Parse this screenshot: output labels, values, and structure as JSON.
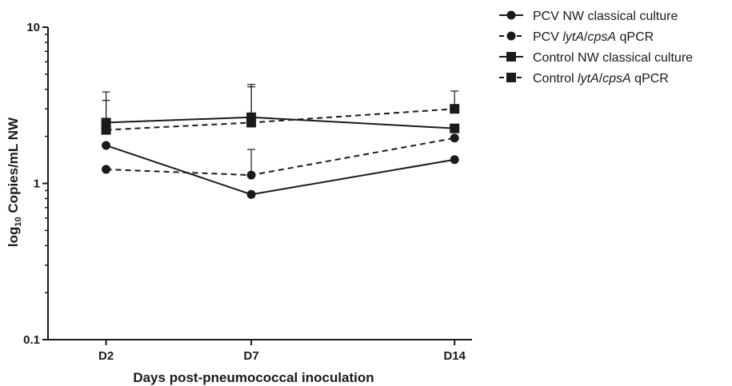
{
  "chart_data": {
    "type": "line",
    "title": "",
    "xlabel": "Days post-pneumococcal inoculation",
    "ylabel_main": "log",
    "ylabel_sub": "10",
    "ylabel_rest": " Copies/mL NW",
    "scale": "log",
    "ylim": [
      0.1,
      10
    ],
    "yticks": [
      {
        "value": 0.1,
        "label": "0.1"
      },
      {
        "value": 1,
        "label": "1"
      },
      {
        "value": 10,
        "label": "10"
      }
    ],
    "categories": [
      "D2",
      "D7",
      "D14"
    ],
    "x": [
      2,
      7,
      14
    ],
    "xlim": [
      0,
      14.6
    ],
    "legend_position": "top-right",
    "grid": false,
    "series": [
      {
        "name": "PCV NW classical culture",
        "legend_parts": [
          {
            "t": "PCV NW classical culture",
            "i": false
          }
        ],
        "marker": "circle",
        "dashed": false,
        "values": [
          1.75,
          0.85,
          1.42
        ],
        "error_upper": [
          null,
          null,
          null
        ]
      },
      {
        "name": "PCV lytA/cpsA qPCR",
        "legend_parts": [
          {
            "t": "PCV ",
            "i": false
          },
          {
            "t": "lytA",
            "i": true
          },
          {
            "t": "/",
            "i": false
          },
          {
            "t": "cpsA",
            "i": true
          },
          {
            "t": " qPCR",
            "i": false
          }
        ],
        "marker": "circle",
        "dashed": true,
        "values": [
          1.23,
          1.13,
          1.95
        ],
        "error_upper": [
          null,
          1.65,
          null
        ]
      },
      {
        "name": "Control NW classical culture",
        "legend_parts": [
          {
            "t": "Control NW classical culture",
            "i": false
          }
        ],
        "marker": "square",
        "dashed": false,
        "values": [
          2.45,
          2.65,
          2.25
        ],
        "error_upper": [
          3.85,
          4.3,
          null
        ]
      },
      {
        "name": "Control lytA/cpsA qPCR",
        "legend_parts": [
          {
            "t": "Control ",
            "i": false
          },
          {
            "t": "lytA",
            "i": true
          },
          {
            "t": "/",
            "i": false
          },
          {
            "t": "cpsA",
            "i": true
          },
          {
            "t": " qPCR",
            "i": false
          }
        ],
        "marker": "square",
        "dashed": true,
        "values": [
          2.2,
          2.45,
          3.0
        ],
        "error_upper": [
          3.4,
          4.15,
          3.9
        ]
      }
    ]
  }
}
